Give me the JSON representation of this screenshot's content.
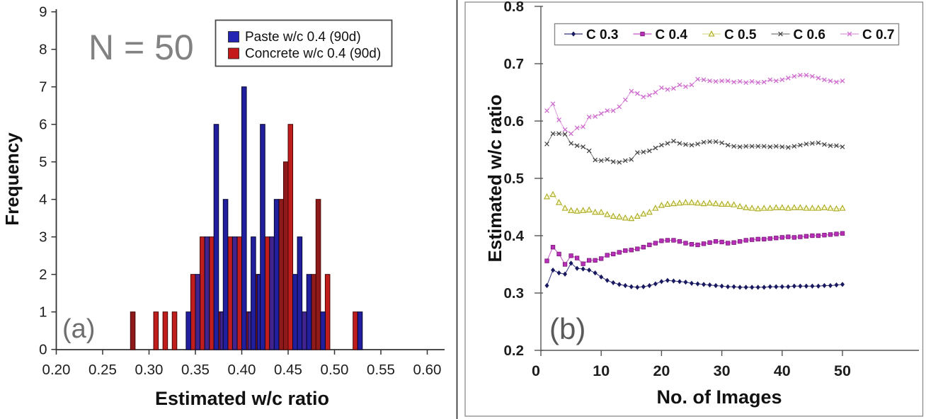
{
  "figure": {
    "panel_a_label": "(a)",
    "panel_b_label": "(b)",
    "annotation_n": "N = 50"
  },
  "chart_data": [
    {
      "type": "bar",
      "panel": "a",
      "xlabel": "Estimated w/c ratio",
      "ylabel": "Frequency",
      "xlim": [
        0.2,
        0.6
      ],
      "ylim": [
        0,
        9
      ],
      "x_ticks": [
        "0.20",
        "0.25",
        "0.30",
        "0.35",
        "0.40",
        "0.45",
        "0.50",
        "0.55",
        "0.60"
      ],
      "y_ticks": [
        "0",
        "1",
        "2",
        "3",
        "4",
        "5",
        "6",
        "7",
        "8",
        "9"
      ],
      "bin_width": 0.005,
      "annotation": "N = 50",
      "legend_position": "top-right",
      "series": [
        {
          "name": "Concrete w/c 0.4 (90d)",
          "color": "#c01d1d",
          "color_dark": "#8e1a1a",
          "edge": "#470404",
          "bars": [
            [
              0.28,
              1,
              1
            ],
            [
              0.305,
              1,
              0
            ],
            [
              0.315,
              1,
              0
            ],
            [
              0.325,
              1,
              0
            ],
            [
              0.345,
              2,
              0
            ],
            [
              0.355,
              3,
              0
            ],
            [
              0.365,
              3,
              0
            ],
            [
              0.375,
              1,
              0
            ],
            [
              0.385,
              3,
              0
            ],
            [
              0.395,
              3,
              0
            ],
            [
              0.405,
              1,
              0
            ],
            [
              0.415,
              2,
              1
            ],
            [
              0.425,
              3,
              0
            ],
            [
              0.44,
              4,
              1
            ],
            [
              0.445,
              5,
              1
            ],
            [
              0.45,
              6,
              0
            ],
            [
              0.475,
              2,
              1
            ],
            [
              0.48,
              4,
              1
            ],
            [
              0.49,
              2,
              0
            ],
            [
              0.52,
              1,
              0
            ]
          ]
        },
        {
          "name": "Paste w/c 0.4 (90d)",
          "color": "#221f9e",
          "color_purple": "#42248f",
          "edge": "#05052e",
          "bars": [
            [
              0.34,
              1,
              0
            ],
            [
              0.35,
              2,
              1
            ],
            [
              0.36,
              3,
              1
            ],
            [
              0.37,
              6,
              0
            ],
            [
              0.375,
              1,
              1
            ],
            [
              0.38,
              4,
              0
            ],
            [
              0.39,
              3,
              1
            ],
            [
              0.4,
              7,
              0
            ],
            [
              0.405,
              1,
              1
            ],
            [
              0.41,
              3,
              0
            ],
            [
              0.415,
              2,
              0
            ],
            [
              0.42,
              6,
              0
            ],
            [
              0.43,
              3,
              1
            ],
            [
              0.435,
              4,
              0
            ],
            [
              0.455,
              2,
              0
            ],
            [
              0.46,
              3,
              0
            ],
            [
              0.465,
              1,
              1
            ],
            [
              0.47,
              2,
              0
            ],
            [
              0.485,
              1,
              0
            ],
            [
              0.525,
              1,
              0
            ]
          ]
        }
      ],
      "legend": [
        {
          "label": "Paste w/c 0.4 (90d)",
          "color": "#2424b4"
        },
        {
          "label": "Concrete w/c 0.4 (90d)",
          "color": "#c41a1a"
        }
      ]
    },
    {
      "type": "line",
      "panel": "b",
      "xlabel": "No. of Images",
      "ylabel": "Estimated w/c ratio",
      "xlim": [
        0,
        50
      ],
      "ylim": [
        0.2,
        0.8
      ],
      "x_ticks": [
        0,
        10,
        20,
        30,
        40,
        50
      ],
      "y_ticks": [
        "0.2",
        "0.3",
        "0.4",
        "0.5",
        "0.6",
        "0.7",
        "0.8"
      ],
      "legend_position": "top-inside",
      "series": [
        {
          "name": "C 0.3",
          "marker": "diamond",
          "color": "#191960",
          "line": "#32327e",
          "values": [
            0.313,
            0.34,
            0.335,
            0.333,
            0.352,
            0.343,
            0.342,
            0.34,
            0.335,
            0.328,
            0.322,
            0.318,
            0.315,
            0.313,
            0.311,
            0.31,
            0.311,
            0.313,
            0.316,
            0.32,
            0.322,
            0.321,
            0.32,
            0.319,
            0.317,
            0.316,
            0.315,
            0.314,
            0.313,
            0.312,
            0.311,
            0.311,
            0.31,
            0.31,
            0.31,
            0.31,
            0.31,
            0.311,
            0.311,
            0.311,
            0.311,
            0.312,
            0.312,
            0.312,
            0.312,
            0.312,
            0.313,
            0.313,
            0.314,
            0.315
          ]
        },
        {
          "name": "C 0.4",
          "marker": "square",
          "color": "#b62fb6",
          "line": "#c455c4",
          "values": [
            0.356,
            0.38,
            0.368,
            0.35,
            0.365,
            0.361,
            0.351,
            0.357,
            0.357,
            0.36,
            0.366,
            0.368,
            0.371,
            0.374,
            0.375,
            0.377,
            0.38,
            0.384,
            0.387,
            0.391,
            0.392,
            0.392,
            0.39,
            0.387,
            0.385,
            0.384,
            0.386,
            0.388,
            0.39,
            0.389,
            0.387,
            0.388,
            0.39,
            0.392,
            0.393,
            0.394,
            0.394,
            0.395,
            0.396,
            0.397,
            0.398,
            0.397,
            0.398,
            0.399,
            0.4,
            0.4,
            0.401,
            0.402,
            0.403,
            0.404
          ]
        },
        {
          "name": "C 0.5",
          "marker": "triangle",
          "color": "#a8a81e",
          "line": "#d9d98e",
          "values": [
            0.468,
            0.472,
            0.458,
            0.448,
            0.444,
            0.443,
            0.444,
            0.445,
            0.441,
            0.441,
            0.437,
            0.434,
            0.433,
            0.431,
            0.43,
            0.434,
            0.438,
            0.441,
            0.448,
            0.453,
            0.455,
            0.456,
            0.457,
            0.458,
            0.458,
            0.457,
            0.456,
            0.457,
            0.456,
            0.455,
            0.455,
            0.454,
            0.451,
            0.449,
            0.448,
            0.447,
            0.448,
            0.448,
            0.449,
            0.449,
            0.448,
            0.449,
            0.449,
            0.448,
            0.448,
            0.448,
            0.449,
            0.448,
            0.447,
            0.448
          ]
        },
        {
          "name": "C 0.6",
          "marker": "x",
          "color": "#3f3f3f",
          "line": "#7a7a7a",
          "values": [
            0.56,
            0.578,
            0.578,
            0.577,
            0.561,
            0.557,
            0.555,
            0.548,
            0.532,
            0.531,
            0.533,
            0.529,
            0.528,
            0.531,
            0.533,
            0.545,
            0.546,
            0.548,
            0.553,
            0.558,
            0.561,
            0.565,
            0.561,
            0.559,
            0.558,
            0.56,
            0.563,
            0.564,
            0.564,
            0.562,
            0.558,
            0.556,
            0.555,
            0.556,
            0.556,
            0.556,
            0.556,
            0.555,
            0.556,
            0.555,
            0.554,
            0.556,
            0.558,
            0.56,
            0.561,
            0.562,
            0.559,
            0.557,
            0.557,
            0.555
          ]
        },
        {
          "name": "C 0.7",
          "marker": "x",
          "color": "#cc66cc",
          "line": "#dd99dd",
          "values": [
            0.618,
            0.63,
            0.602,
            0.585,
            0.578,
            0.588,
            0.59,
            0.607,
            0.608,
            0.613,
            0.618,
            0.618,
            0.625,
            0.637,
            0.652,
            0.648,
            0.642,
            0.645,
            0.65,
            0.658,
            0.655,
            0.657,
            0.663,
            0.66,
            0.663,
            0.673,
            0.672,
            0.67,
            0.669,
            0.67,
            0.67,
            0.668,
            0.669,
            0.667,
            0.669,
            0.667,
            0.668,
            0.672,
            0.67,
            0.672,
            0.675,
            0.678,
            0.68,
            0.68,
            0.678,
            0.675,
            0.672,
            0.67,
            0.668,
            0.67
          ]
        }
      ]
    }
  ]
}
